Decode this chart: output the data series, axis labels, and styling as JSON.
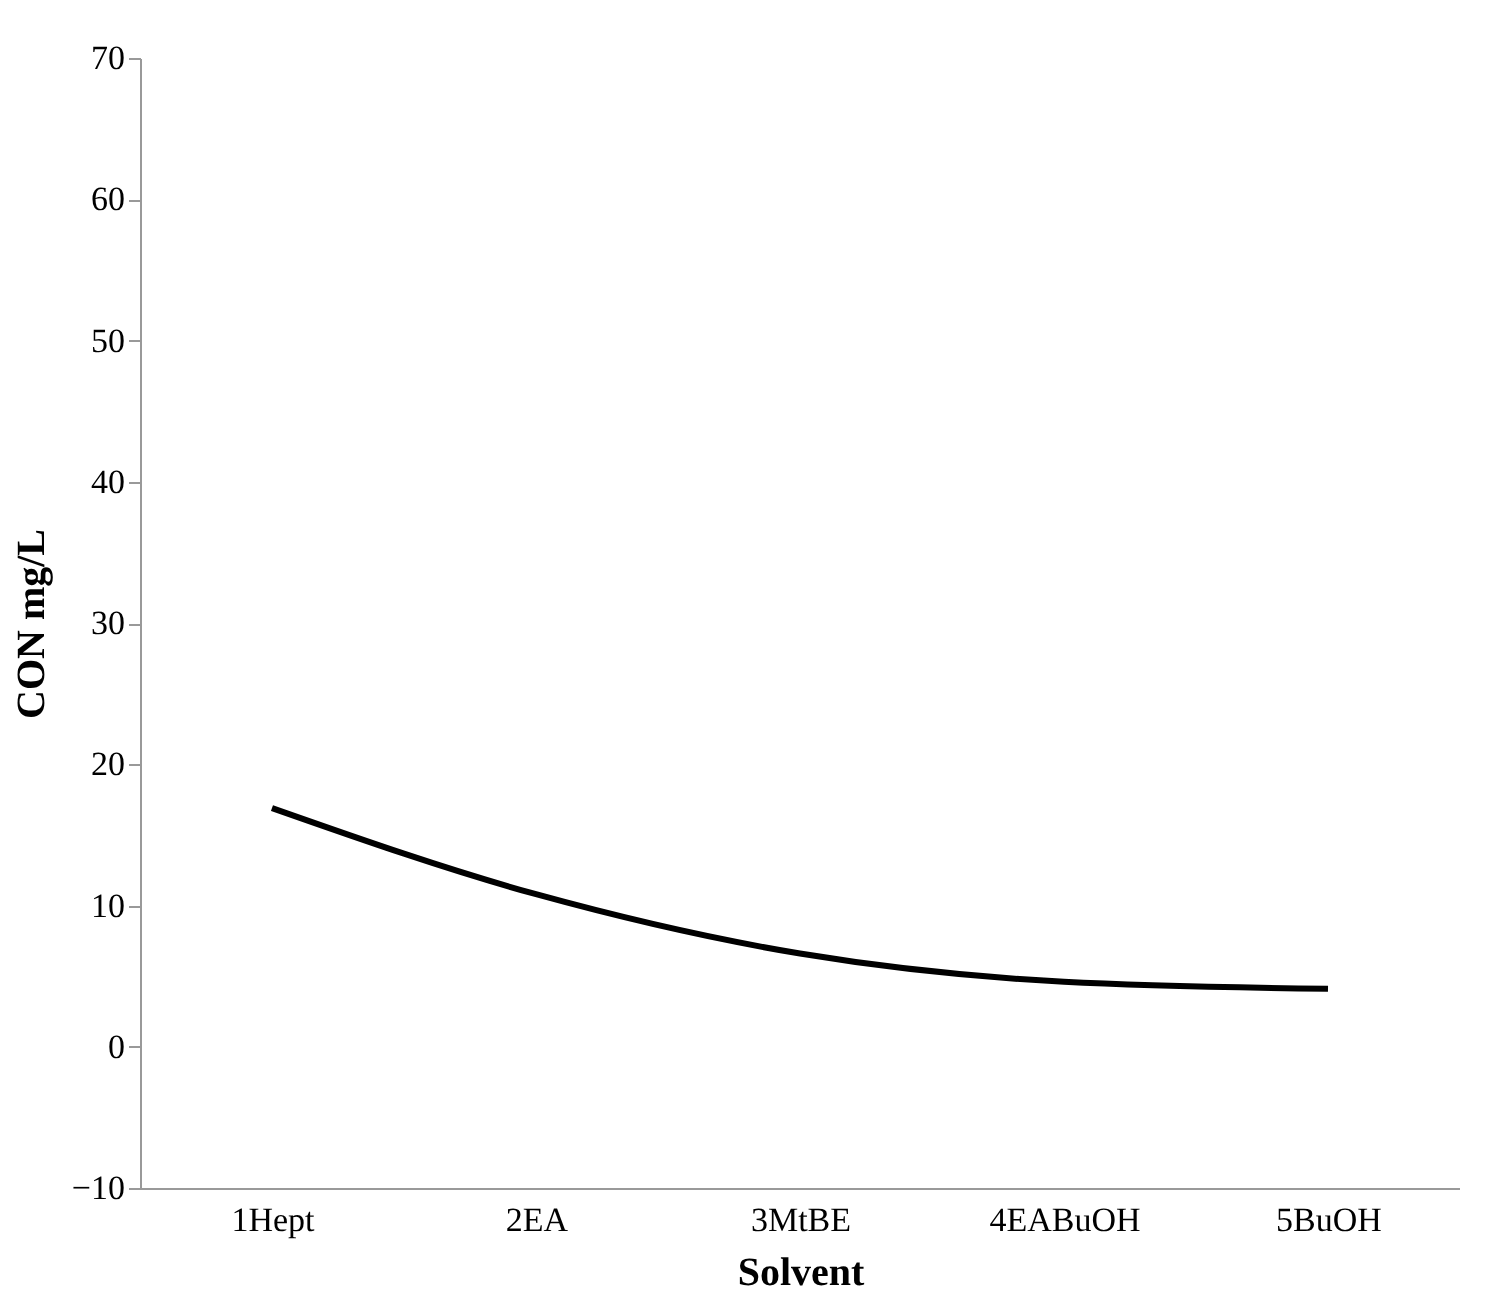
{
  "chart_data": {
    "type": "line",
    "xlabel": "Solvent",
    "ylabel": "CON mg/L",
    "categories": [
      "1Hept",
      "2EA",
      "3MtBE",
      "4EABuOH",
      "5BuOH"
    ],
    "series": [
      {
        "color": "#000000",
        "values": [
          16.9,
          10.8,
          6.6,
          4.6,
          4.1
        ]
      }
    ],
    "ylim": [
      -10,
      70
    ],
    "yticks": [
      -10,
      0,
      10,
      20,
      30,
      40,
      50,
      60,
      70
    ],
    "grid": false,
    "marker": "none",
    "line_style": "solid"
  }
}
